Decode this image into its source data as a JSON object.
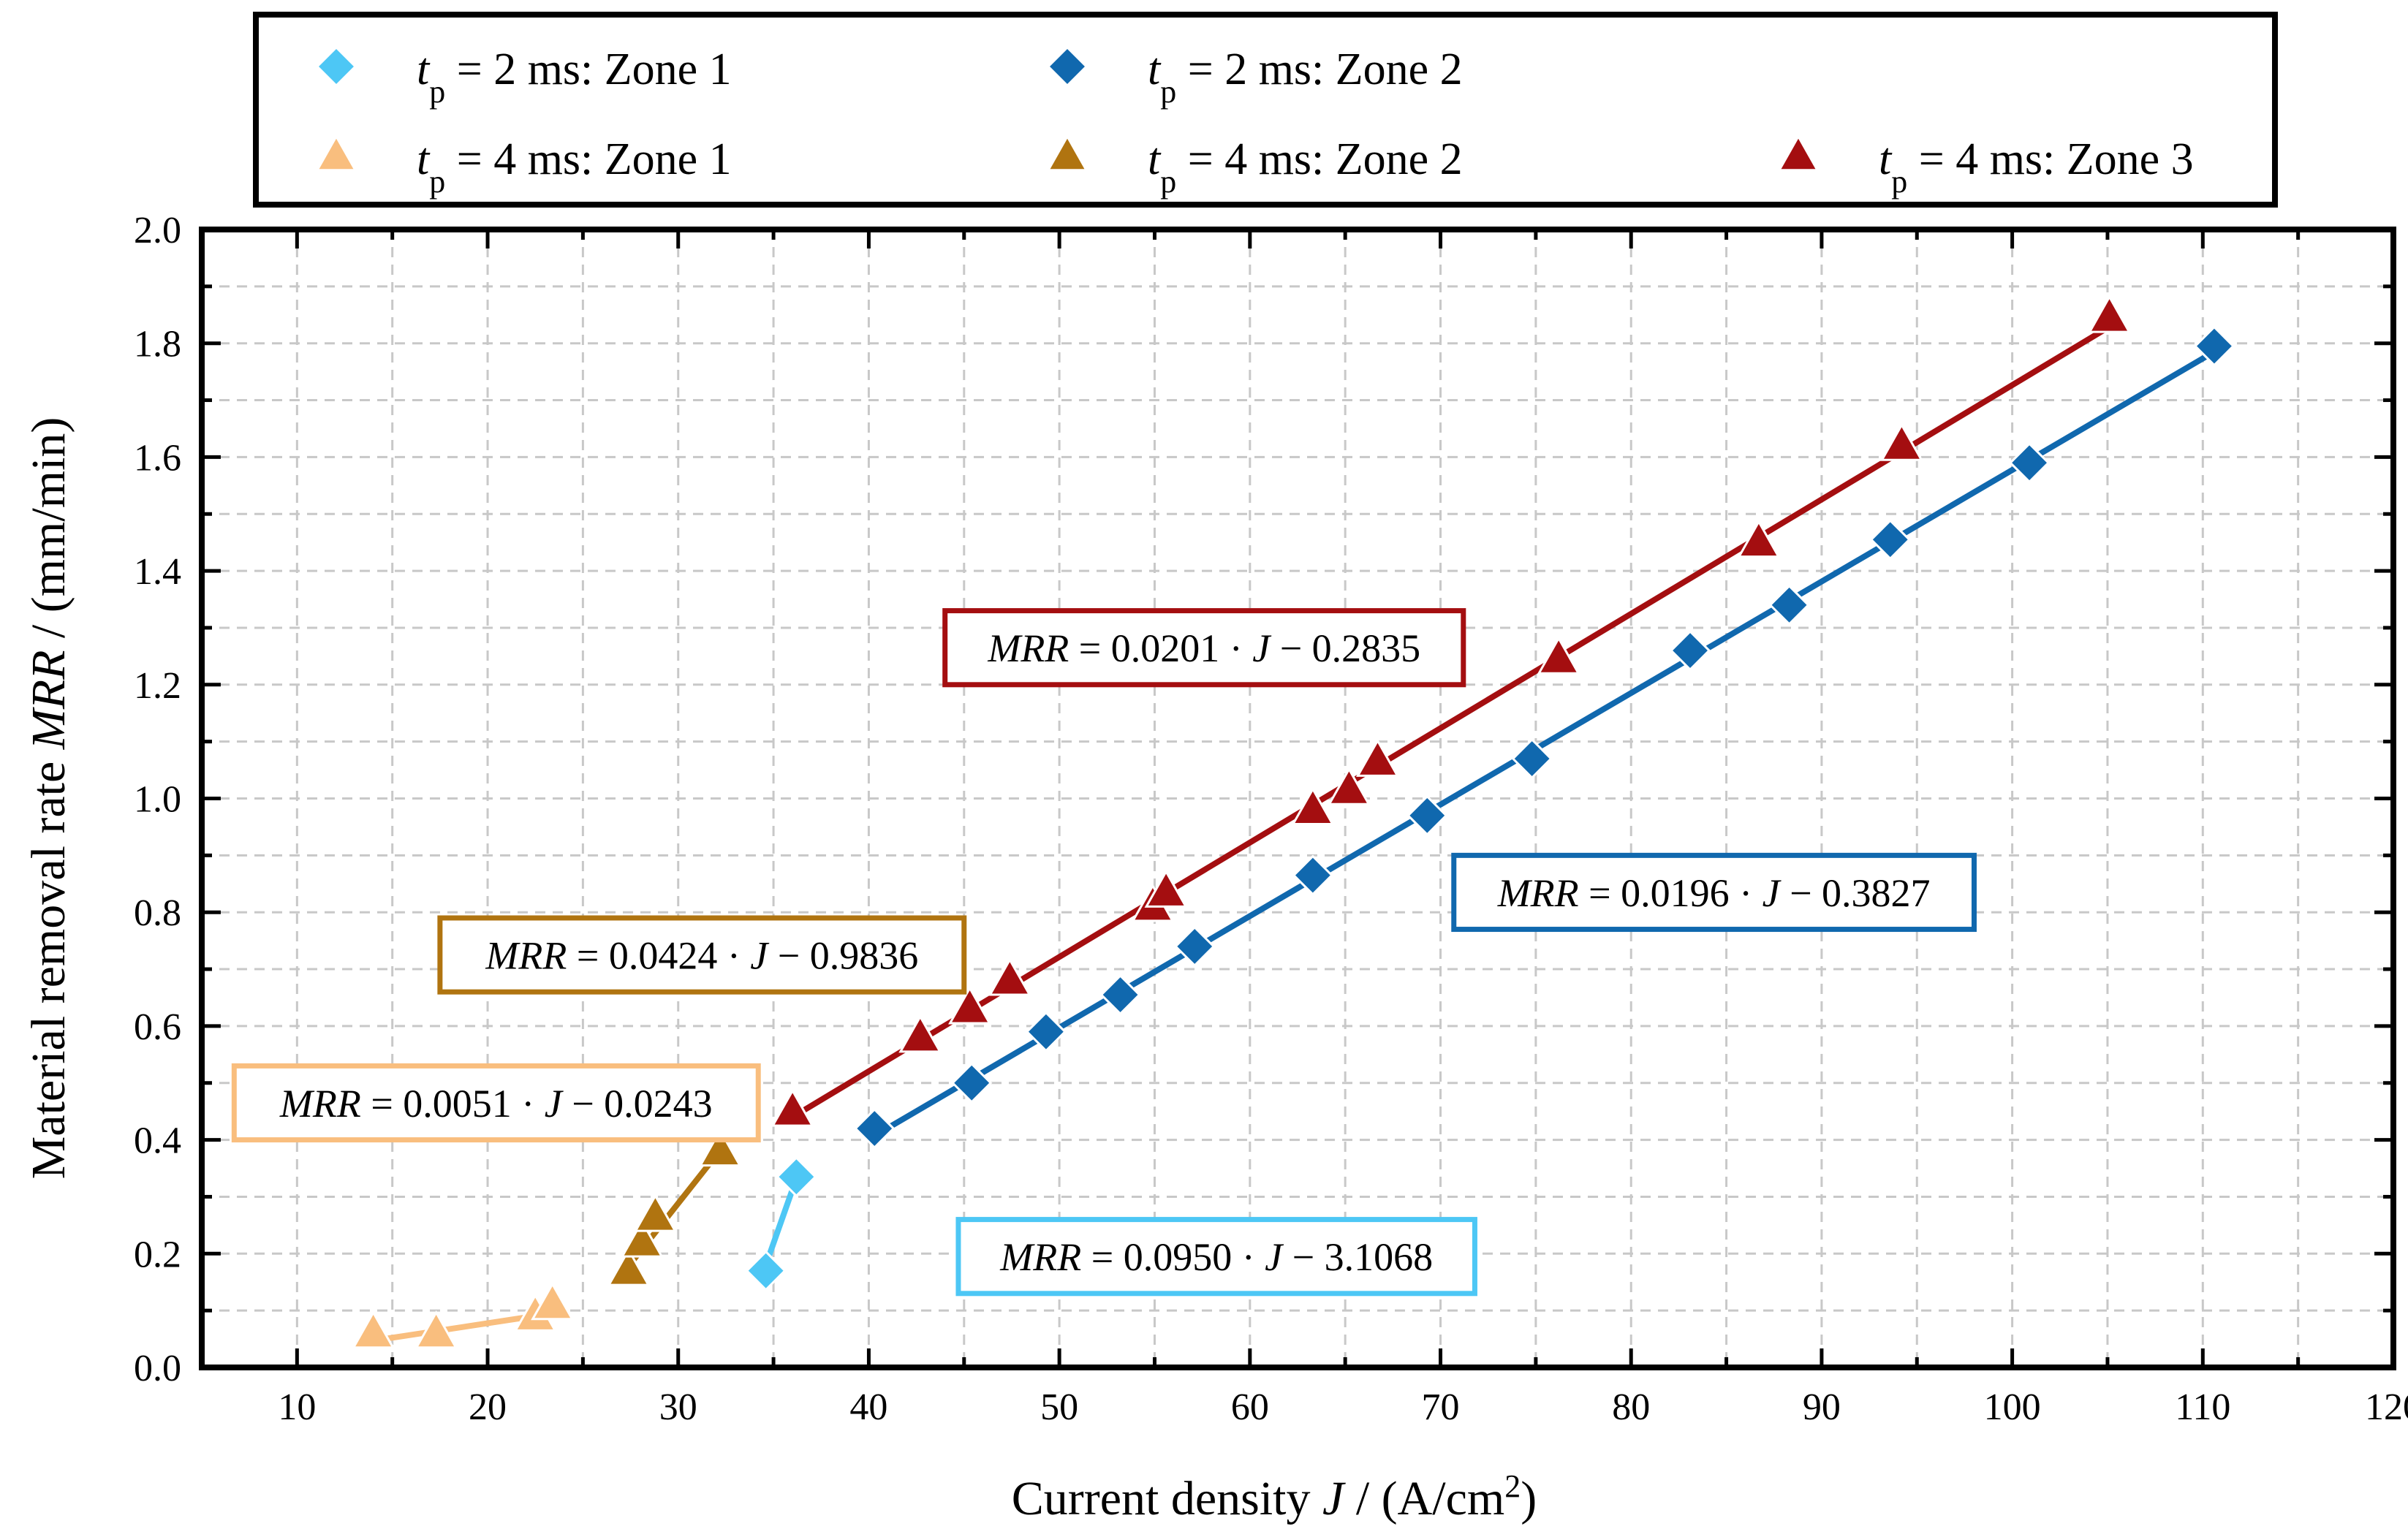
{
  "chart_data": {
    "type": "scatter",
    "xlabel": "Current density J / (A/cm²)",
    "xlabel_prefix": "Current density ",
    "xlabel_var": "J",
    "xlabel_units": " / (A/cm",
    "xlabel_sup": "2",
    "xlabel_close": ")",
    "ylabel": "Material removal rate MRR / (mm/min)",
    "ylabel_prefix": "Material removal rate ",
    "ylabel_var": "MRR",
    "ylabel_units": " / (mm/min)",
    "xlim": [
      5,
      120
    ],
    "ylim": [
      0.0,
      2.0
    ],
    "xticks": [
      10,
      20,
      30,
      40,
      50,
      60,
      70,
      80,
      90,
      100,
      110,
      120
    ],
    "xtick_labels": [
      "10",
      "20",
      "30",
      "40",
      "50",
      "60",
      "70",
      "80",
      "90",
      "100",
      "110",
      "120"
    ],
    "yticks": [
      0.0,
      0.2,
      0.4,
      0.6,
      0.8,
      1.0,
      1.2,
      1.4,
      1.6,
      1.8,
      2.0
    ],
    "ytick_labels": [
      "0.0",
      "0.2",
      "0.4",
      "0.6",
      "0.8",
      "1.0",
      "1.2",
      "1.4",
      "1.6",
      "1.8",
      "2.0"
    ],
    "grid": true,
    "legend_position": "top",
    "series": [
      {
        "name": "tp = 2 ms: Zone 1",
        "legend_var": "t",
        "legend_sub": "p",
        "legend_rest": " = 2 ms: Zone 1",
        "marker": "diamond",
        "color": "#4dc7f5",
        "x": [
          34.6,
          36.2
        ],
        "y": [
          0.17,
          0.335
        ],
        "fit": {
          "slope": 0.095,
          "intercept": -3.1068,
          "x_range": [
            34.6,
            36.2
          ]
        },
        "equation": {
          "lhs": "MRR",
          "mid": " = 0.0950 · ",
          "var": "J",
          "rhs": " − 3.1068"
        }
      },
      {
        "name": "tp = 2 ms: Zone 2",
        "legend_var": "t",
        "legend_sub": "p",
        "legend_rest": " = 2 ms: Zone 2",
        "marker": "diamond",
        "color": "#1068ae",
        "x": [
          40.3,
          45.4,
          49.3,
          53.2,
          57.1,
          63.3,
          69.3,
          74.8,
          83.1,
          88.3,
          93.6,
          100.9,
          110.6
        ],
        "y": [
          0.42,
          0.5,
          0.59,
          0.655,
          0.74,
          0.865,
          0.97,
          1.07,
          1.26,
          1.34,
          1.455,
          1.59,
          1.795
        ],
        "fit": {
          "slope": 0.0196,
          "intercept": -0.3827,
          "x_range": [
            40.3,
            110.6
          ]
        },
        "equation": {
          "lhs": "MRR",
          "mid": " = 0.0196 · ",
          "var": "J",
          "rhs": " − 0.3827"
        }
      },
      {
        "name": "tp = 4 ms: Zone 1",
        "legend_var": "t",
        "legend_sub": "p",
        "legend_rest": " = 4 ms: Zone 1",
        "marker": "triangle",
        "color": "#f9be7e",
        "x": [
          14.0,
          17.3,
          22.5,
          23.4
        ],
        "y": [
          0.06,
          0.06,
          0.09,
          0.11
        ],
        "fit": {
          "slope": 0.0051,
          "intercept": -0.0243,
          "x_range": [
            14.0,
            23.4
          ]
        },
        "equation": {
          "lhs": "MRR",
          "mid": " = 0.0051 · ",
          "var": "J",
          "rhs": " − 0.0243"
        }
      },
      {
        "name": "tp = 4 ms: Zone 2",
        "legend_var": "t",
        "legend_sub": "p",
        "legend_rest": " = 4 ms: Zone 2",
        "marker": "triangle",
        "color": "#b07410",
        "x": [
          27.4,
          28.1,
          28.8,
          32.2
        ],
        "y": [
          0.17,
          0.22,
          0.265,
          0.38
        ],
        "fit": {
          "slope": 0.0424,
          "intercept": -0.9836,
          "x_range": [
            27.4,
            32.2
          ]
        },
        "equation": {
          "lhs": "MRR",
          "mid": " = 0.0424 · ",
          "var": "J",
          "rhs": " − 0.9836"
        }
      },
      {
        "name": "tp = 4 ms: Zone 3",
        "legend_var": "t",
        "legend_sub": "p",
        "legend_rest": " = 4 ms: Zone 3",
        "marker": "triangle",
        "color": "#a40e10",
        "x": [
          36.0,
          42.7,
          45.3,
          47.4,
          54.9,
          55.6,
          63.3,
          65.2,
          66.7,
          76.2,
          86.7,
          94.2,
          105.1
        ],
        "y": [
          0.45,
          0.58,
          0.63,
          0.68,
          0.81,
          0.835,
          0.98,
          1.015,
          1.065,
          1.245,
          1.45,
          1.62,
          1.845
        ],
        "fit": {
          "slope": 0.0201,
          "intercept": -0.2835,
          "x_range": [
            36.0,
            105.1
          ]
        },
        "equation": {
          "lhs": "MRR",
          "mid": " = 0.0201 · ",
          "var": "J",
          "rhs": " − 0.2835"
        }
      }
    ]
  }
}
